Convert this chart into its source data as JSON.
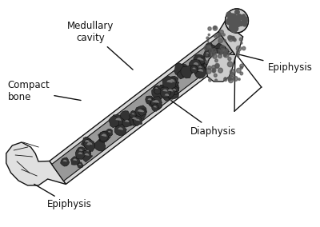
{
  "background_color": "#ffffff",
  "line_color": "#111111",
  "text_color": "#111111",
  "bone_fill": "#e8e8e8",
  "marrow_fill": "#aaaaaa",
  "compact_fill": "#d0d0d0",
  "font_size": 8.5,
  "labels": {
    "medullary_cavity": "Medullary\ncavity",
    "compact_bone": "Compact\nbone",
    "diaphysis": "Diaphysis",
    "epiphysis_top": "Epiphysis",
    "epiphysis_bottom": "Epiphysis"
  }
}
